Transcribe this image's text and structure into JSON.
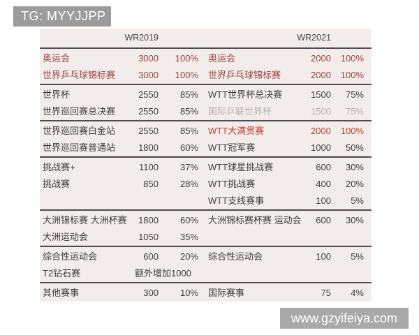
{
  "watermarks": {
    "top_left": "TG: MYYJJPP",
    "bottom_right": "www.gzyifeiya.com"
  },
  "colors": {
    "table_background": "#f2edea",
    "divider": "#4d4d4d",
    "text_normal": "#3d3d3d",
    "text_red": "#9c4540",
    "text_slam_red": "#bc4036",
    "text_disabled_gray": "#bab3af",
    "watermark_gray": "#9c9c9c"
  },
  "table": {
    "headers": {
      "left": "WR2019",
      "right": "WR2021"
    },
    "sections": [
      {
        "rows": [
          {
            "left": {
              "label": "奥运会",
              "pts": "3000",
              "pct": "100%",
              "style": "red"
            },
            "right": {
              "label": "奥运会",
              "pts": "2000",
              "pct": "100%",
              "style": "red"
            }
          },
          {
            "left": {
              "label": "世界乒乓球锦标赛",
              "pts": "3000",
              "pct": "100%",
              "style": "red"
            },
            "right": {
              "label": "世界乒乓球锦标赛",
              "pts": "2000",
              "pct": "100%",
              "style": "red"
            }
          }
        ]
      },
      {
        "rows": [
          {
            "left": {
              "label": "世界杯",
              "pts": "2550",
              "pct": "85%",
              "style": "normal"
            },
            "right": {
              "label": "WTT世界杯总决赛",
              "pts": "1500",
              "pct": "75%",
              "style": "normal"
            }
          },
          {
            "left": {
              "label": "世界巡回赛总决赛",
              "pts": "2550",
              "pct": "85%",
              "style": "normal"
            },
            "right": {
              "label": "国际乒联世界杯",
              "pts": "1500",
              "pct": "75%",
              "style": "gray"
            }
          }
        ]
      },
      {
        "rows": [
          {
            "left": {
              "label": "世界巡回赛白金站",
              "pts": "2550",
              "pct": "85%",
              "style": "normal"
            },
            "right": {
              "label": "WTT大满贯赛",
              "pts": "2000",
              "pct": "100%",
              "style": "slam"
            }
          },
          {
            "left": {
              "label": "世界巡回赛普通站",
              "pts": "1800",
              "pct": "60%",
              "style": "normal"
            },
            "right": {
              "label": "WTT冠军赛",
              "pts": "1000",
              "pct": "50%",
              "style": "normal"
            }
          }
        ]
      },
      {
        "rows": [
          {
            "left": {
              "label": "挑战赛+",
              "pts": "1100",
              "pct": "37%",
              "style": "normal"
            },
            "right": {
              "label": "WTT球星挑战赛",
              "pts": "600",
              "pct": "30%",
              "style": "normal"
            }
          },
          {
            "left": {
              "label": "挑战赛",
              "pts": "850",
              "pct": "28%",
              "style": "normal"
            },
            "right": {
              "label": "WTT挑战赛",
              "pts": "400",
              "pct": "20%",
              "style": "normal"
            }
          },
          {
            "left": {
              "label": "",
              "pts": "",
              "pct": "",
              "style": "normal"
            },
            "right": {
              "label": "WTT支线赛事",
              "pts": "100",
              "pct": "5%",
              "style": "normal"
            }
          }
        ]
      },
      {
        "rows": [
          {
            "left": {
              "label": "大洲锦标赛 大洲杯赛",
              "pts": "1800",
              "pct": "60%",
              "style": "normal"
            },
            "right": {
              "label": "大洲锦标赛杯赛 运动会",
              "pts": "600",
              "pct": "30%",
              "style": "normal"
            }
          },
          {
            "left": {
              "label": "大洲运动会",
              "pts": "1050",
              "pct": "35%",
              "style": "normal"
            },
            "right": {
              "label": "",
              "pts": "",
              "pct": "",
              "style": "normal"
            }
          }
        ]
      },
      {
        "rows": [
          {
            "left": {
              "label": "综合性运动会",
              "pts": "600",
              "pct": "20%",
              "style": "normal"
            },
            "right": {
              "label": "综合性运动会",
              "pts": "100",
              "pct": "5%",
              "style": "normal"
            }
          },
          {
            "left": {
              "label": "T2钻石赛",
              "pts": "额外增加1000",
              "pct": "",
              "style": "normal",
              "merged": true
            },
            "right": {
              "label": "",
              "pts": "",
              "pct": "",
              "style": "normal"
            }
          }
        ]
      },
      {
        "rows": [
          {
            "left": {
              "label": "其他赛事",
              "pts": "300",
              "pct": "10%",
              "style": "normal"
            },
            "right": {
              "label": "国际赛事",
              "pts": "75",
              "pct": "4%",
              "style": "normal"
            }
          }
        ]
      }
    ]
  }
}
